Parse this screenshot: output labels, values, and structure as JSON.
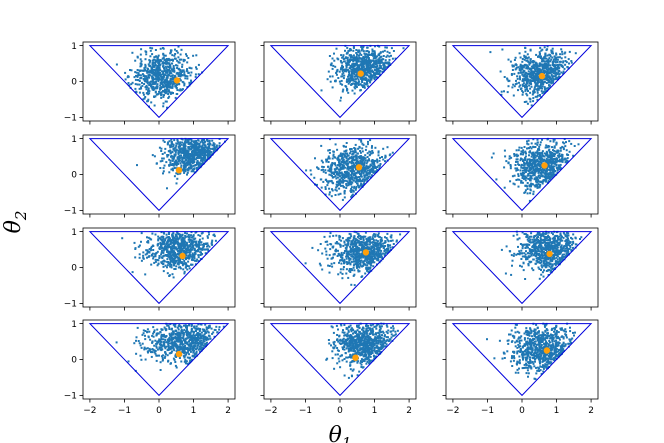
{
  "chart_data": {
    "type": "scatter",
    "layout": {
      "rows": 4,
      "cols": 3
    },
    "xlabel": "θ",
    "xlabel_sub": "1",
    "ylabel": "θ",
    "ylabel_sub": "2",
    "xlim": [
      -2.2,
      2.2
    ],
    "ylim": [
      -1.1,
      1.1
    ],
    "xticks": [
      -2,
      -1,
      0,
      1,
      2
    ],
    "yticks": [
      -1,
      0,
      1
    ],
    "xtick_labels": [
      "−2",
      "−1",
      "0",
      "1",
      "2"
    ],
    "ytick_labels": [
      "−1",
      "0",
      "1"
    ],
    "boundary_triangle": [
      [
        -2,
        1
      ],
      [
        2,
        1
      ],
      [
        0,
        -1
      ]
    ],
    "colors": {
      "points": "#1f77b4",
      "marker": "#ff9f0a",
      "triangle": "#0000dd"
    },
    "points_per_panel": 700,
    "panels": [
      {
        "cloud_center": [
          0.1,
          0.15
        ],
        "spread": [
          0.45,
          0.35
        ],
        "orange_point": [
          0.52,
          0.03
        ]
      },
      {
        "cloud_center": [
          0.75,
          0.35
        ],
        "spread": [
          0.45,
          0.3
        ],
        "orange_point": [
          0.6,
          0.22
        ]
      },
      {
        "cloud_center": [
          0.55,
          0.2
        ],
        "spread": [
          0.45,
          0.35
        ],
        "orange_point": [
          0.58,
          0.15
        ]
      },
      {
        "cloud_center": [
          1.05,
          0.55
        ],
        "spread": [
          0.45,
          0.3
        ],
        "orange_point": [
          0.58,
          0.12
        ]
      },
      {
        "cloud_center": [
          0.45,
          0.1
        ],
        "spread": [
          0.55,
          0.35
        ],
        "orange_point": [
          0.55,
          0.2
        ]
      },
      {
        "cloud_center": [
          0.6,
          0.25
        ],
        "spread": [
          0.45,
          0.35
        ],
        "orange_point": [
          0.65,
          0.25
        ]
      },
      {
        "cloud_center": [
          0.6,
          0.5
        ],
        "spread": [
          0.5,
          0.28
        ],
        "orange_point": [
          0.68,
          0.32
        ]
      },
      {
        "cloud_center": [
          0.7,
          0.4
        ],
        "spread": [
          0.5,
          0.3
        ],
        "orange_point": [
          0.75,
          0.42
        ]
      },
      {
        "cloud_center": [
          0.8,
          0.5
        ],
        "spread": [
          0.45,
          0.3
        ],
        "orange_point": [
          0.8,
          0.38
        ]
      },
      {
        "cloud_center": [
          0.8,
          0.5
        ],
        "spread": [
          0.55,
          0.3
        ],
        "orange_point": [
          0.58,
          0.15
        ]
      },
      {
        "cloud_center": [
          0.75,
          0.45
        ],
        "spread": [
          0.45,
          0.32
        ],
        "orange_point": [
          0.45,
          0.05
        ]
      },
      {
        "cloud_center": [
          0.6,
          0.3
        ],
        "spread": [
          0.45,
          0.35
        ],
        "orange_point": [
          0.72,
          0.25
        ]
      }
    ]
  }
}
